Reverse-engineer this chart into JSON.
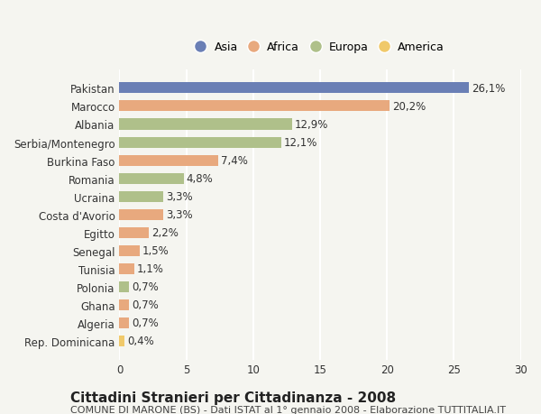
{
  "categories": [
    "Rep. Dominicana",
    "Algeria",
    "Ghana",
    "Polonia",
    "Tunisia",
    "Senegal",
    "Egitto",
    "Costa d'Avorio",
    "Ucraina",
    "Romania",
    "Burkina Faso",
    "Serbia/Montenegro",
    "Albania",
    "Marocco",
    "Pakistan"
  ],
  "values": [
    0.4,
    0.7,
    0.7,
    0.7,
    1.1,
    1.5,
    2.2,
    3.3,
    3.3,
    4.8,
    7.4,
    12.1,
    12.9,
    20.2,
    26.1
  ],
  "continents": [
    "America",
    "Africa",
    "Africa",
    "Europa",
    "Africa",
    "Africa",
    "Africa",
    "Africa",
    "Europa",
    "Europa",
    "Africa",
    "Europa",
    "Europa",
    "Africa",
    "Asia"
  ],
  "colors": {
    "Asia": "#6a7fb5",
    "Africa": "#e8a97e",
    "Europa": "#afc08a",
    "America": "#f0c96a"
  },
  "legend_order": [
    "Asia",
    "Africa",
    "Europa",
    "America"
  ],
  "title1": "Cittadini Stranieri per Cittadinanza - 2008",
  "title2": "COMUNE DI MARONE (BS) - Dati ISTAT al 1° gennaio 2008 - Elaborazione TUTTITALIA.IT",
  "xlim": [
    0,
    30
  ],
  "xticks": [
    0,
    5,
    10,
    15,
    20,
    25,
    30
  ],
  "background_color": "#f5f5f0",
  "bar_height": 0.6,
  "grid_color": "#ffffff",
  "label_fontsize": 8.5,
  "tick_fontsize": 8.5,
  "title1_fontsize": 11,
  "title2_fontsize": 8
}
